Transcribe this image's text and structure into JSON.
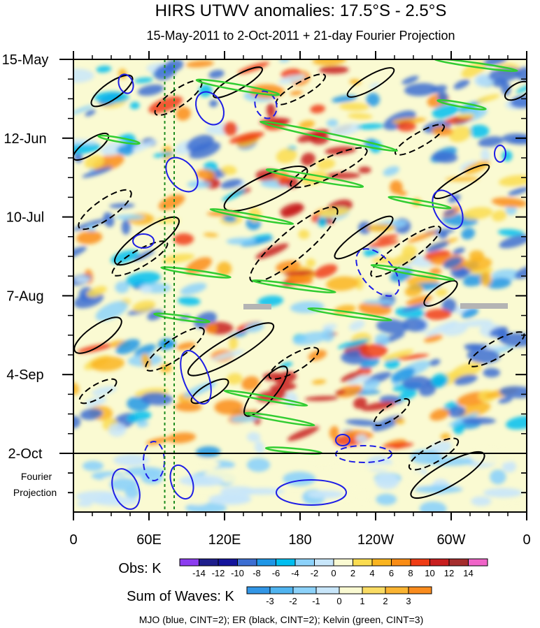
{
  "chart_data": {
    "type": "heatmap",
    "title": "HIRS UTWV anomalies: 17.5°S - 2.5°S",
    "subtitle": "15-May-2011 to 2-Oct-2011 + 21-day Fourier Projection",
    "xlabel": "",
    "ylabel": "",
    "x_ticks": [
      "0",
      "60E",
      "120E",
      "180",
      "120W",
      "60W",
      "0"
    ],
    "x_range": [
      0,
      360
    ],
    "y_ticks": [
      "15-May",
      "12-Jun",
      "10-Jul",
      "7-Aug",
      "4-Sep",
      "2-Oct"
    ],
    "projection_label_line1": "Fourier",
    "projection_label_line2": "Projection",
    "obs_colorbar": {
      "label": "Obs: K",
      "ticks": [
        "-14",
        "-12",
        "-10",
        "-8",
        "-6",
        "-4",
        "-2",
        "0",
        "2",
        "4",
        "6",
        "8",
        "10",
        "12",
        "14"
      ],
      "colors": [
        "#8c3cf0",
        "#1e1e8c",
        "#14149c",
        "#3c6ed2",
        "#1e96e6",
        "#00bef0",
        "#8cd2fa",
        "#c8e6fa",
        "#fafad2",
        "#fadc50",
        "#fab41e",
        "#fa8c14",
        "#f03c14",
        "#c81e1e",
        "#a52d2d",
        "#f064c8"
      ]
    },
    "waves_colorbar": {
      "label": "Sum of Waves: K",
      "ticks": [
        "-3",
        "-2",
        "-1",
        "0",
        "1",
        "2",
        "3"
      ],
      "colors": [
        "#3296e6",
        "#50b4f0",
        "#8cd2fa",
        "#c8e6fa",
        "#fafad2",
        "#fadc64",
        "#fab432",
        "#fa8c1e"
      ]
    },
    "legend_text": "MJO (blue, CINT=2); ER (black, CINT=2); Kelvin (green, CINT=3)",
    "reference_lines_longitude": [
      72.5,
      80
    ],
    "series": [
      {
        "name": "MJO",
        "color": "#1e1ee6",
        "contour_interval": 2
      },
      {
        "name": "ER",
        "color": "#000000",
        "contour_interval": 2
      },
      {
        "name": "Kelvin",
        "color": "#32cd32",
        "contour_interval": 3
      }
    ]
  }
}
